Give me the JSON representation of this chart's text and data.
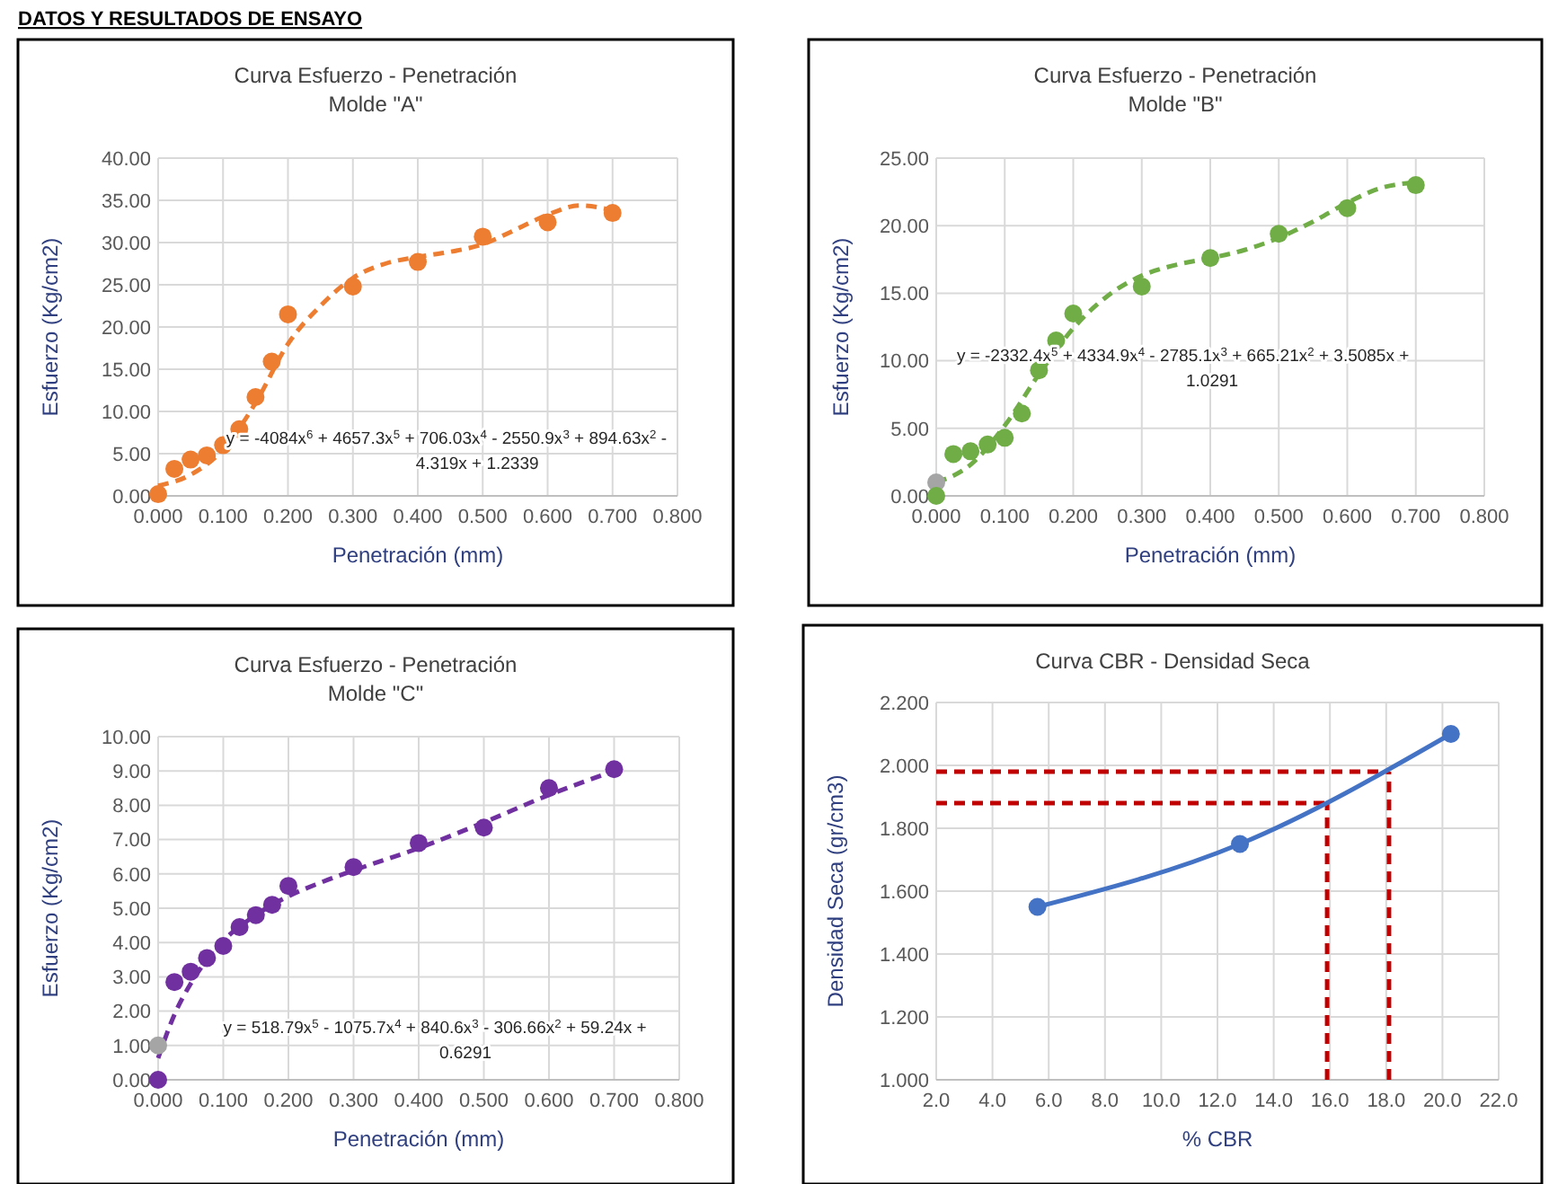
{
  "chart_data": [
    {
      "type": "scatter",
      "title": "Curva Esfuerzo - Penetración",
      "subtitle": "Molde \"A\"",
      "xlabel": "Penetración (mm)",
      "ylabel": "Esfuerzo (Kg/cm2)",
      "xlim": [
        0,
        0.8
      ],
      "ylim": [
        0,
        40
      ],
      "xticks": [
        {
          "value": 0,
          "label": "0.000"
        },
        {
          "value": 0.1,
          "label": "0.100"
        },
        {
          "value": 0.2,
          "label": "0.200"
        },
        {
          "value": 0.3,
          "label": "0.300"
        },
        {
          "value": 0.4,
          "label": "0.400"
        },
        {
          "value": 0.5,
          "label": "0.500"
        },
        {
          "value": 0.6,
          "label": "0.600"
        },
        {
          "value": 0.7,
          "label": "0.700"
        },
        {
          "value": 0.8,
          "label": "0.800"
        }
      ],
      "yticks": [
        {
          "value": 0,
          "label": "0.00"
        },
        {
          "value": 5,
          "label": "5.00"
        },
        {
          "value": 10,
          "label": "10.00"
        },
        {
          "value": 15,
          "label": "15.00"
        },
        {
          "value": 20,
          "label": "20.00"
        },
        {
          "value": 25,
          "label": "25.00"
        },
        {
          "value": 30,
          "label": "30.00"
        },
        {
          "value": 35,
          "label": "35.00"
        },
        {
          "value": 40,
          "label": "40.00"
        }
      ],
      "grid": true,
      "marker": "circle",
      "series": [
        {
          "type": "line",
          "color": "#ed7d31",
          "line_style": "dashed",
          "marker": "none",
          "x": [
            0,
            0.05,
            0.1,
            0.15,
            0.2,
            0.25,
            0.3,
            0.35,
            0.4,
            0.45,
            0.5,
            0.55,
            0.6,
            0.65,
            0.7
          ],
          "values": [
            1.2,
            2.5,
            5.5,
            11,
            18,
            22.5,
            25.8,
            27.5,
            28.3,
            28.9,
            29.8,
            31.5,
            33.3,
            34.4,
            33.8
          ]
        },
        {
          "color": "#ed7d31",
          "x": [
            0,
            0.025,
            0.05,
            0.075,
            0.1,
            0.125,
            0.15,
            0.175,
            0.2,
            0.3,
            0.4,
            0.5,
            0.6,
            0.7
          ],
          "values": [
            0.2,
            3.2,
            4.3,
            4.8,
            6.0,
            7.9,
            11.7,
            15.9,
            21.5,
            24.8,
            27.7,
            30.7,
            32.4,
            33.5
          ]
        }
      ],
      "annotations": [
        "DATOS Y RESULTADOS DE ENSAYO",
        "y = -4084x$^{6}$ + 4657.3x$^{5}$ + 706.03x$^{4}$ - 2550.9x$^{3}$ + 894.63x$^{2}$ -\n4.319x + 1.2339"
      ]
    },
    {
      "type": "scatter",
      "title": "Curva Esfuerzo - Penetración",
      "subtitle": "Molde \"B\"",
      "xlabel": "Penetración (mm)",
      "ylabel": "Esfuerzo (Kg/cm2)",
      "xlim": [
        0,
        0.8
      ],
      "ylim": [
        0,
        25
      ],
      "xticks": [
        {
          "value": 0,
          "label": "0.000"
        },
        {
          "value": 0.1,
          "label": "0.100"
        },
        {
          "value": 0.2,
          "label": "0.200"
        },
        {
          "value": 0.3,
          "label": "0.300"
        },
        {
          "value": 0.4,
          "label": "0.400"
        },
        {
          "value": 0.5,
          "label": "0.500"
        },
        {
          "value": 0.6,
          "label": "0.600"
        },
        {
          "value": 0.7,
          "label": "0.700"
        },
        {
          "value": 0.8,
          "label": "0.800"
        }
      ],
      "yticks": [
        {
          "value": 0,
          "label": "0.00"
        },
        {
          "value": 5,
          "label": "5.00"
        },
        {
          "value": 10,
          "label": "10.00"
        },
        {
          "value": 15,
          "label": "15.00"
        },
        {
          "value": 20,
          "label": "20.00"
        },
        {
          "value": 25,
          "label": "25.00"
        }
      ],
      "grid": true,
      "marker": "circle",
      "series": [
        {
          "type": "line",
          "color": "#70ad47",
          "line_style": "dashed",
          "marker": "none",
          "x": [
            0,
            0.05,
            0.1,
            0.15,
            0.2,
            0.25,
            0.3,
            0.35,
            0.4,
            0.45,
            0.5,
            0.55,
            0.6,
            0.65,
            0.7
          ],
          "values": [
            1.0,
            2.3,
            5.2,
            9.0,
            12.4,
            14.8,
            16.3,
            17.1,
            17.6,
            18.2,
            19.1,
            20.3,
            21.7,
            22.8,
            23.2
          ]
        },
        {
          "color": "#a5a5a5",
          "x": [
            0
          ],
          "values": [
            1.0
          ]
        },
        {
          "color": "#70ad47",
          "x": [
            0,
            0.025,
            0.05,
            0.075,
            0.1,
            0.125,
            0.15,
            0.175,
            0.2,
            0.3,
            0.4,
            0.5,
            0.6,
            0.7
          ],
          "values": [
            0,
            3.1,
            3.3,
            3.8,
            4.3,
            6.1,
            9.3,
            11.5,
            13.5,
            15.5,
            17.6,
            19.4,
            21.3,
            23.0
          ]
        }
      ],
      "annotations": [
        "y = -2332.4x$^{5}$ + 4334.9x$^{4}$ - 2785.1x$^{3}$ + 665.21x$^{2}$ + 3.5085x +\n1.0291"
      ]
    },
    {
      "type": "scatter",
      "title": "Curva Esfuerzo - Penetración",
      "subtitle": "Molde \"C\"",
      "xlabel": "Penetración (mm)",
      "ylabel": "Esfuerzo (Kg/cm2)",
      "xlim": [
        0,
        0.8
      ],
      "ylim": [
        0,
        10
      ],
      "xticks": [
        {
          "value": 0,
          "label": "0.000"
        },
        {
          "value": 0.1,
          "label": "0.100"
        },
        {
          "value": 0.2,
          "label": "0.200"
        },
        {
          "value": 0.3,
          "label": "0.300"
        },
        {
          "value": 0.4,
          "label": "0.400"
        },
        {
          "value": 0.5,
          "label": "0.500"
        },
        {
          "value": 0.6,
          "label": "0.600"
        },
        {
          "value": 0.7,
          "label": "0.700"
        },
        {
          "value": 0.8,
          "label": "0.800"
        }
      ],
      "yticks": [
        {
          "value": 0,
          "label": "0.00"
        },
        {
          "value": 1,
          "label": "1.00"
        },
        {
          "value": 2,
          "label": "2.00"
        },
        {
          "value": 3,
          "label": "3.00"
        },
        {
          "value": 4,
          "label": "4.00"
        },
        {
          "value": 5,
          "label": "5.00"
        },
        {
          "value": 6,
          "label": "6.00"
        },
        {
          "value": 7,
          "label": "7.00"
        },
        {
          "value": 8,
          "label": "8.00"
        },
        {
          "value": 9,
          "label": "9.00"
        },
        {
          "value": 10,
          "label": "10.00"
        }
      ],
      "grid": true,
      "marker": "circle",
      "series": [
        {
          "type": "line",
          "color": "#7030a0",
          "line_style": "dashed",
          "marker": "none",
          "x": [
            0,
            0.025,
            0.05,
            0.075,
            0.1,
            0.15,
            0.2,
            0.25,
            0.3,
            0.4,
            0.5,
            0.6,
            0.7
          ],
          "values": [
            0.63,
            1.9,
            2.8,
            3.5,
            4.05,
            4.8,
            5.35,
            5.75,
            6.1,
            6.75,
            7.5,
            8.3,
            9.0
          ]
        },
        {
          "color": "#a5a5a5",
          "x": [
            0
          ],
          "values": [
            1.0
          ]
        },
        {
          "color": "#7030a0",
          "x": [
            0,
            0.025,
            0.05,
            0.075,
            0.1,
            0.125,
            0.15,
            0.175,
            0.2,
            0.3,
            0.4,
            0.5,
            0.6,
            0.7
          ],
          "values": [
            0,
            2.85,
            3.15,
            3.55,
            3.9,
            4.45,
            4.8,
            5.1,
            5.65,
            6.2,
            6.9,
            7.35,
            8.5,
            9.05
          ]
        }
      ],
      "annotations": [
        "y = 518.79x$^{5}$ - 1075.7x$^{4}$ + 840.6x$^{3}$ - 306.66x$^{2}$ + 59.24x +\n0.6291"
      ]
    },
    {
      "type": "line",
      "title": "Curva CBR - Densidad Seca",
      "xlabel": "% CBR",
      "ylabel": "Densidad Seca (gr/cm3)",
      "xlim": [
        2,
        22
      ],
      "ylim": [
        1,
        2.2
      ],
      "xticks": [
        {
          "value": 2,
          "label": "2.0"
        },
        {
          "value": 4,
          "label": "4.0"
        },
        {
          "value": 6,
          "label": "6.0"
        },
        {
          "value": 8,
          "label": "8.0"
        },
        {
          "value": 10,
          "label": "10.0"
        },
        {
          "value": 12,
          "label": "12.0"
        },
        {
          "value": 14,
          "label": "14.0"
        },
        {
          "value": 16,
          "label": "16.0"
        },
        {
          "value": 18,
          "label": "18.0"
        },
        {
          "value": 20,
          "label": "20.0"
        },
        {
          "value": 22,
          "label": "22.0"
        }
      ],
      "yticks": [
        {
          "value": 1,
          "label": "1.000"
        },
        {
          "value": 1.2,
          "label": "1.200"
        },
        {
          "value": 1.4,
          "label": "1.400"
        },
        {
          "value": 1.6,
          "label": "1.600"
        },
        {
          "value": 1.8,
          "label": "1.800"
        },
        {
          "value": 2,
          "label": "2.000"
        },
        {
          "value": 2.2,
          "label": "2.200"
        }
      ],
      "grid": true,
      "marker": "circle",
      "series": [
        {
          "color": "#4472c4",
          "x": [
            5.6,
            12.8,
            20.3
          ],
          "values": [
            1.55,
            1.75,
            2.1
          ]
        }
      ],
      "ref_lines": [
        {
          "axis": "x",
          "value": 15.9,
          "color": "#c00000",
          "line_style": "dashed"
        },
        {
          "axis": "y",
          "value": 1.88,
          "color": "#c00000",
          "line_style": "dashed"
        },
        {
          "axis": "x",
          "value": 18.1,
          "color": "#c00000",
          "line_style": "dashed"
        },
        {
          "axis": "y",
          "value": 1.98,
          "color": "#c00000",
          "line_style": "dashed"
        }
      ]
    }
  ]
}
